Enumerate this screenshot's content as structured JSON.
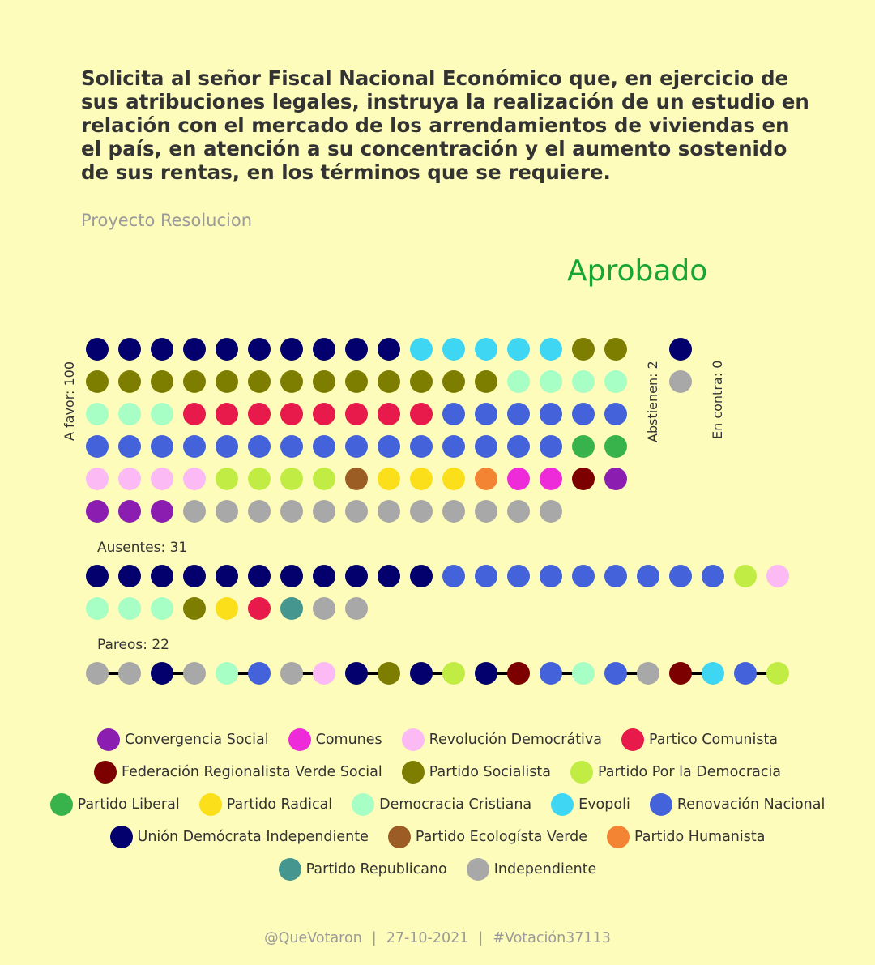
{
  "title": "Solicita al señor Fiscal Nacional Económico que, en ejercicio de sus atribuciones legales, instruya la realización de un estudio en relación con el mercado de los arrendamientos de viviendas en el país, en atención a su concentración y el aumento sostenido de sus rentas, en los términos que se requiere.",
  "subtitle": "Proyecto Resolucion",
  "result": "Aprobado",
  "colors": {
    "result": "#17a633",
    "background": "#fdfcbb"
  },
  "chart_data": {
    "type": "dot-matrix",
    "parties": [
      {
        "key": "CS",
        "name": "Convergencia Social",
        "color": "#8b1eb0"
      },
      {
        "key": "COM",
        "name": "Comunes",
        "color": "#ee2bd8"
      },
      {
        "key": "RD",
        "name": "Revolución Democrátiva",
        "color": "#fcbaf5"
      },
      {
        "key": "PC",
        "name": "Partico Comunista",
        "color": "#e81a4c"
      },
      {
        "key": "FRVS",
        "name": "Federación Regionalista Verde Social",
        "color": "#7d0000"
      },
      {
        "key": "PS",
        "name": "Partido Socialista",
        "color": "#7d7d00"
      },
      {
        "key": "PPD",
        "name": "Partido Por la Democracia",
        "color": "#c0ec43"
      },
      {
        "key": "PL",
        "name": "Partido Liberal",
        "color": "#38b24b"
      },
      {
        "key": "PR",
        "name": "Partido Radical",
        "color": "#fbdf1a"
      },
      {
        "key": "DC",
        "name": "Democracia Cristiana",
        "color": "#a8ffc6"
      },
      {
        "key": "EVO",
        "name": "Evopoli",
        "color": "#3fd6f4"
      },
      {
        "key": "RN",
        "name": "Renovación Nacional",
        "color": "#4463da"
      },
      {
        "key": "UDI",
        "name": "Unión Demócrata Independiente",
        "color": "#03006e"
      },
      {
        "key": "PEV",
        "name": "Partido Ecologísta Verde",
        "color": "#9c5d24"
      },
      {
        "key": "PH",
        "name": "Partido Humanista",
        "color": "#f28434"
      },
      {
        "key": "REP",
        "name": "Partido Republicano",
        "color": "#44968e"
      },
      {
        "key": "IND",
        "name": "Independiente",
        "color": "#a8a8a8"
      }
    ],
    "legend_rows": [
      [
        "CS",
        "COM",
        "RD",
        "PC"
      ],
      [
        "FRVS",
        "PS",
        "PPD"
      ],
      [
        "PL",
        "PR",
        "DC",
        "EVO",
        "RN"
      ],
      [
        "UDI",
        "PEV",
        "PH"
      ],
      [
        "REP",
        "IND"
      ]
    ],
    "groups": {
      "favor": {
        "label": "A favor: 100",
        "count": 100,
        "rows": [
          [
            "UDI",
            "UDI",
            "UDI",
            "UDI",
            "UDI",
            "UDI",
            "UDI",
            "UDI",
            "UDI",
            "UDI",
            "EVO",
            "EVO",
            "EVO",
            "EVO",
            "EVO",
            "PS",
            "PS"
          ],
          [
            "PS",
            "PS",
            "PS",
            "PS",
            "PS",
            "PS",
            "PS",
            "PS",
            "PS",
            "PS",
            "PS",
            "PS",
            "PS",
            "DC",
            "DC",
            "DC",
            "DC"
          ],
          [
            "DC",
            "DC",
            "DC",
            "PC",
            "PC",
            "PC",
            "PC",
            "PC",
            "PC",
            "PC",
            "PC",
            "RN",
            "RN",
            "RN",
            "RN",
            "RN",
            "RN"
          ],
          [
            "RN",
            "RN",
            "RN",
            "RN",
            "RN",
            "RN",
            "RN",
            "RN",
            "RN",
            "RN",
            "RN",
            "RN",
            "RN",
            "RN",
            "RN",
            "PL",
            "PL"
          ],
          [
            "RD",
            "RD",
            "RD",
            "RD",
            "PPD",
            "PPD",
            "PPD",
            "PPD",
            "PEV",
            "PR",
            "PR",
            "PR",
            "PH",
            "COM",
            "COM",
            "FRVS",
            "CS"
          ],
          [
            "CS",
            "CS",
            "CS",
            "IND",
            "IND",
            "IND",
            "IND",
            "IND",
            "IND",
            "IND",
            "IND",
            "IND",
            "IND",
            "IND",
            "IND"
          ]
        ]
      },
      "abstain": {
        "label": "Abstienen: 2",
        "count": 2,
        "items": [
          "UDI",
          "IND"
        ]
      },
      "against": {
        "label": "En contra: 0",
        "count": 0,
        "items": []
      },
      "absent": {
        "label": "Ausentes: 31",
        "count": 31,
        "rows": [
          [
            "UDI",
            "UDI",
            "UDI",
            "UDI",
            "UDI",
            "UDI",
            "UDI",
            "UDI",
            "UDI",
            "UDI",
            "UDI",
            "RN",
            "RN",
            "RN",
            "RN",
            "RN",
            "RN",
            "RN",
            "RN",
            "RN",
            "PPD",
            "RD"
          ],
          [
            "DC",
            "DC",
            "DC",
            "PS",
            "PR",
            "PC",
            "REP",
            "IND",
            "IND"
          ]
        ]
      },
      "pairs": {
        "label": "Pareos: 22",
        "count": 22,
        "pairs": [
          [
            "IND",
            "IND"
          ],
          [
            "UDI",
            "IND"
          ],
          [
            "DC",
            "RN"
          ],
          [
            "IND",
            "RD"
          ],
          [
            "UDI",
            "PS"
          ],
          [
            "UDI",
            "PPD"
          ],
          [
            "UDI",
            "FRVS"
          ],
          [
            "RN",
            "DC"
          ],
          [
            "RN",
            "IND"
          ],
          [
            "FRVS",
            "EVO"
          ],
          [
            "RN",
            "PPD"
          ]
        ]
      }
    }
  },
  "footer": {
    "handle": "@QueVotaron",
    "separator": "|",
    "date": "27-10-2021",
    "tag": "#Votación37113"
  }
}
